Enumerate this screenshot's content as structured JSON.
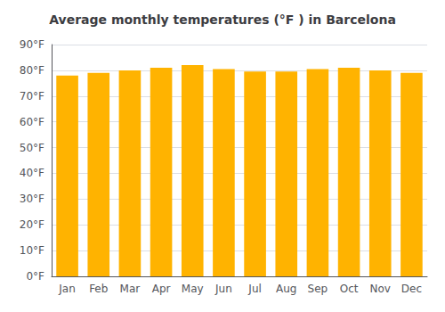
{
  "chart_data": {
    "type": "bar",
    "title": "Average monthly temperatures (°F ) in Barcelona",
    "categories": [
      "Jan",
      "Feb",
      "Mar",
      "Apr",
      "May",
      "Jun",
      "Jul",
      "Aug",
      "Sep",
      "Oct",
      "Nov",
      "Dec"
    ],
    "values": [
      78,
      79,
      80,
      81,
      82,
      80.5,
      79.5,
      79.5,
      80.5,
      81,
      80,
      79
    ],
    "color": "#FFB300",
    "ylim": [
      0,
      90
    ],
    "yticks": [
      {
        "value": 0,
        "label": "0°F"
      },
      {
        "value": 10,
        "label": "10°F"
      },
      {
        "value": 20,
        "label": "20°F"
      },
      {
        "value": 30,
        "label": "30°F"
      },
      {
        "value": 40,
        "label": "40°F"
      },
      {
        "value": 50,
        "label": "50°F"
      },
      {
        "value": 60,
        "label": "60°F"
      },
      {
        "value": 70,
        "label": "70°F"
      },
      {
        "value": 80,
        "label": "80°F"
      },
      {
        "value": 90,
        "label": "90°F"
      }
    ],
    "grid": true
  }
}
